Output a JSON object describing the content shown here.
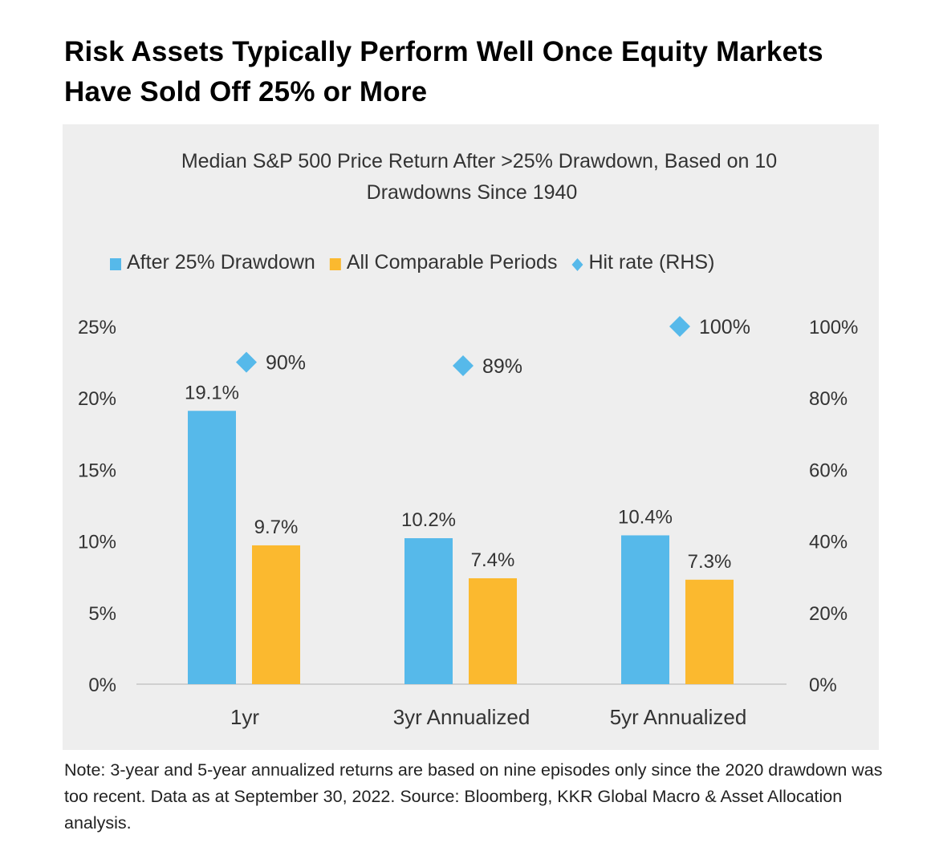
{
  "title": "Risk Assets Typically Perform Well Once Equity Markets Have Sold Off 25% or More",
  "note": "Note: 3-year and 5-year annualized returns are based on nine episodes only since the 2020 drawdown was too recent. Data as at September 30, 2022. Source: Bloomberg, KKR Global Macro & Asset Allocation analysis.",
  "chart_data": {
    "type": "bar",
    "title_line1": "Median S&P 500 Price Return After >25% Drawdown, Based on 10",
    "title_line2": "Drawdowns Since 1940",
    "categories": [
      "1yr",
      "3yr Annualized",
      "5yr Annualized"
    ],
    "series": [
      {
        "name": "After 25% Drawdown",
        "type": "bar",
        "axis": "left",
        "color": "#56b9ea",
        "values": [
          19.1,
          10.2,
          10.4
        ],
        "labels": [
          "19.1%",
          "10.2%",
          "10.4%"
        ]
      },
      {
        "name": "All Comparable Periods",
        "type": "bar",
        "axis": "left",
        "color": "#fbb92f",
        "values": [
          9.7,
          7.4,
          7.3
        ],
        "labels": [
          "9.7%",
          "7.4%",
          "7.3%"
        ]
      },
      {
        "name": "Hit rate (RHS)",
        "type": "scatter",
        "marker": "diamond",
        "axis": "right",
        "color": "#56b9ea",
        "values": [
          90,
          89,
          100
        ],
        "labels": [
          "90%",
          "89%",
          "100%"
        ]
      }
    ],
    "left_axis": {
      "range": [
        0,
        25
      ],
      "ticks": [
        "0%",
        "5%",
        "10%",
        "15%",
        "20%",
        "25%"
      ]
    },
    "right_axis": {
      "range": [
        0,
        100
      ],
      "ticks": [
        "0%",
        "20%",
        "40%",
        "60%",
        "80%",
        "100%"
      ]
    },
    "legend_placement": "top",
    "grid": false
  }
}
